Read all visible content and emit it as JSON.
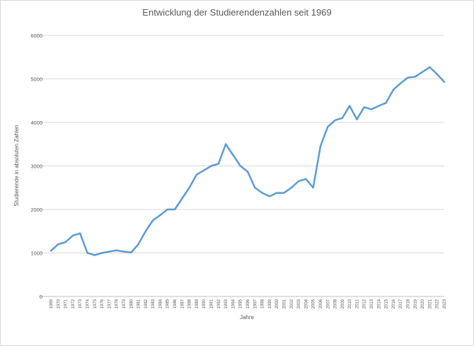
{
  "chart_data": {
    "type": "line",
    "title": "Entwicklung der Studierendenzahlen  seit 1969",
    "xlabel": "Jahre",
    "ylabel": "Studierende in absoluten Zahlen",
    "ylim": [
      0,
      6000
    ],
    "yticks": [
      "0",
      "1000",
      "2000",
      "3000",
      "4000",
      "5000",
      "6000"
    ],
    "grid": true,
    "legend": "none",
    "line_color": "#5b9bd5",
    "categories": [
      "1969",
      "1970",
      "1971",
      "1972",
      "1973",
      "1974",
      "1975",
      "1976",
      "1977",
      "1978",
      "1979",
      "1980",
      "1981",
      "1982",
      "1983",
      "1984",
      "1985",
      "1986",
      "1987",
      "1988",
      "1989",
      "1990",
      "1991",
      "1992",
      "1993",
      "1994",
      "1995",
      "1996",
      "1997",
      "1998",
      "1999",
      "2000",
      "2001",
      "2002",
      "2003",
      "2004",
      "2005",
      "2006",
      "2007",
      "2008",
      "2009",
      "2010",
      "2011",
      "2012",
      "2013",
      "2014",
      "2015",
      "2016",
      "2017",
      "2018",
      "2019",
      "2020",
      "2021",
      "2022",
      "2023"
    ],
    "values": [
      1050,
      1200,
      1250,
      1400,
      1450,
      1000,
      950,
      1000,
      1030,
      1060,
      1030,
      1010,
      1200,
      1500,
      1750,
      1870,
      2000,
      2000,
      2250,
      2500,
      2800,
      2900,
      3000,
      3050,
      3500,
      3250,
      3000,
      2870,
      2500,
      2380,
      2300,
      2380,
      2380,
      2500,
      2650,
      2700,
      2500,
      3450,
      3900,
      4050,
      4100,
      4380,
      4070,
      4350,
      4300,
      4380,
      4450,
      4750,
      4900,
      5030,
      5050,
      5160,
      5270,
      5110,
      4930
    ]
  }
}
